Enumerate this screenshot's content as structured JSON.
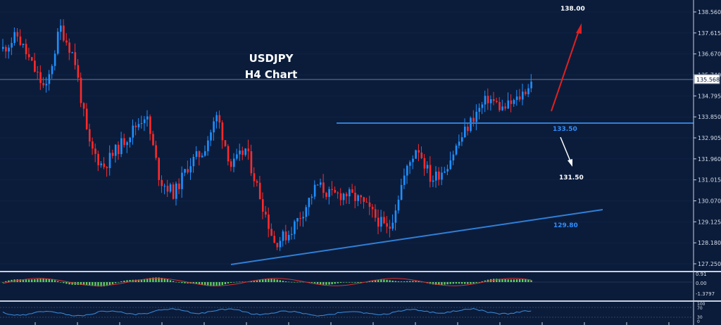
{
  "header": {
    "symbol": "USDJPY",
    "timeframe": "H4 Chart"
  },
  "price_axis": {
    "ticks": [
      "138.560",
      "137.615",
      "136.670",
      "135.740",
      "134.795",
      "133.850",
      "132.905",
      "131.960",
      "131.015",
      "130.070",
      "129.125",
      "128.180",
      "127.250"
    ],
    "current_price": "135.568"
  },
  "annotations": {
    "target_up": "138.00",
    "resistance": "133.50",
    "target_down": "131.50",
    "trendline": "129.80"
  },
  "macd_axis": {
    "ticks": [
      "0.91",
      "0.00",
      "-1.3797"
    ]
  },
  "rsi_axis": {
    "ticks": [
      "100",
      "70",
      "30",
      "0"
    ]
  },
  "colors": {
    "background": "#0b1c3b",
    "bull_candle": "#1e90ff",
    "bear_candle": "#ff2a2a",
    "support_line": "#2f7fd6",
    "label_blue": "#2f8fff",
    "up_arrow": "#e02020",
    "down_arrow": "#ffffff",
    "macd_hist": "#5fcf5f",
    "macd_signal": "#e03030",
    "rsi_line": "#3a8fe0"
  },
  "chart_data": {
    "type": "candlestick",
    "title": "USDJPY H4 Chart",
    "ylim": [
      127.25,
      138.56
    ],
    "approx_close_path": [
      136.9,
      137.5,
      136.2,
      135.0,
      137.9,
      136.5,
      132.6,
      131.6,
      132.4,
      133.2,
      134.0,
      131.0,
      130.4,
      131.7,
      132.3,
      133.9,
      131.6,
      132.4,
      130.3,
      128.2,
      128.6,
      129.6,
      130.8,
      130.3,
      130.4,
      130.1,
      129.4,
      128.7,
      131.0,
      132.6,
      131.0,
      131.6,
      132.8,
      133.9,
      134.7,
      134.2,
      134.6,
      135.4
    ],
    "horizontal_levels": [
      133.5
    ],
    "trendline_value": 129.8,
    "projection_up": 138.0,
    "projection_down": 131.5
  }
}
